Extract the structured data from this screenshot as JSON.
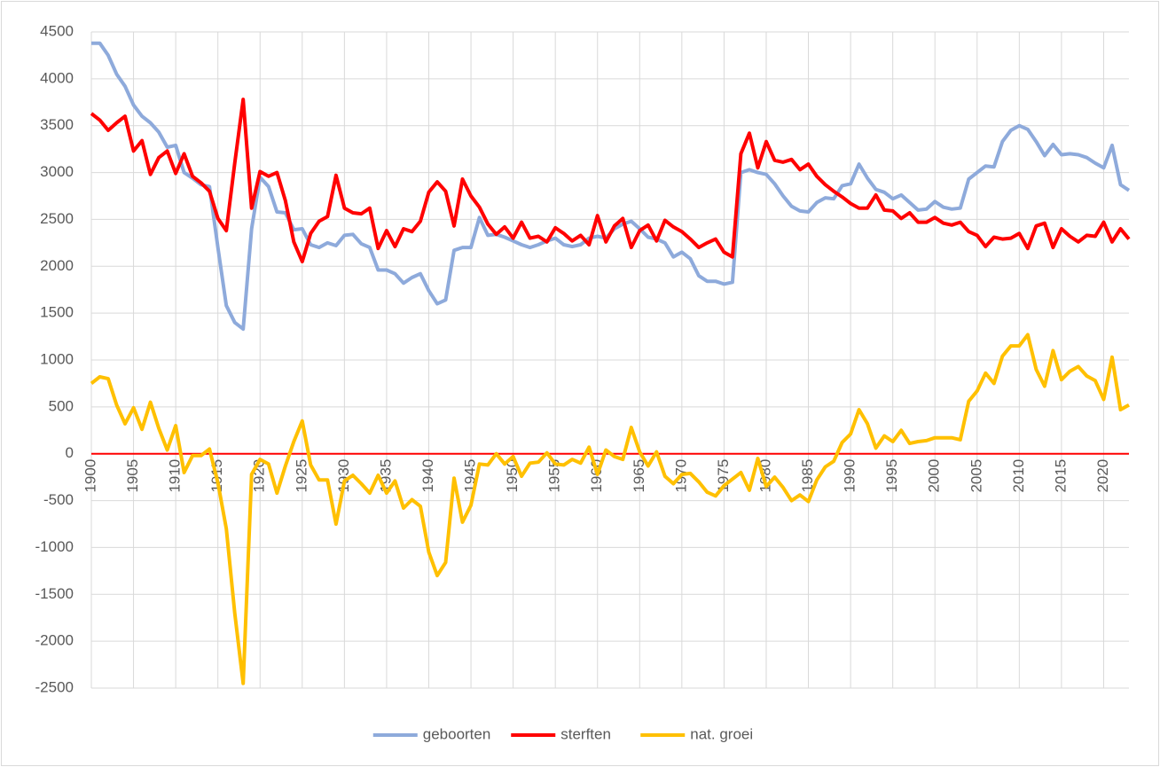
{
  "chart_data": {
    "type": "line",
    "x": [
      1900,
      1901,
      1902,
      1903,
      1904,
      1905,
      1906,
      1907,
      1908,
      1909,
      1910,
      1911,
      1912,
      1913,
      1914,
      1915,
      1916,
      1917,
      1918,
      1919,
      1920,
      1921,
      1922,
      1923,
      1924,
      1925,
      1926,
      1927,
      1928,
      1929,
      1930,
      1931,
      1932,
      1933,
      1934,
      1935,
      1936,
      1937,
      1938,
      1939,
      1940,
      1941,
      1942,
      1943,
      1944,
      1945,
      1946,
      1947,
      1948,
      1949,
      1950,
      1951,
      1952,
      1953,
      1954,
      1955,
      1956,
      1957,
      1958,
      1959,
      1960,
      1961,
      1962,
      1963,
      1964,
      1965,
      1966,
      1967,
      1968,
      1969,
      1970,
      1971,
      1972,
      1973,
      1974,
      1975,
      1976,
      1977,
      1978,
      1979,
      1980,
      1981,
      1982,
      1983,
      1984,
      1985,
      1986,
      1987,
      1988,
      1989,
      1990,
      1991,
      1992,
      1993,
      1994,
      1995,
      1996,
      1997,
      1998,
      1999,
      2000,
      2001,
      2002,
      2003,
      2004,
      2005,
      2006,
      2007,
      2008,
      2009,
      2010,
      2011,
      2012,
      2013,
      2014,
      2015,
      2016,
      2017,
      2018,
      2019,
      2020,
      2021,
      2022,
      2023
    ],
    "series": [
      {
        "name": "geboorten",
        "color": "#8eaadb",
        "values": [
          4380,
          4380,
          4250,
          4050,
          3920,
          3720,
          3600,
          3530,
          3430,
          3270,
          3290,
          3000,
          2940,
          2870,
          2850,
          2200,
          1580,
          1400,
          1330,
          2400,
          2950,
          2850,
          2580,
          2570,
          2390,
          2400,
          2230,
          2200,
          2250,
          2220,
          2330,
          2340,
          2240,
          2200,
          1960,
          1960,
          1920,
          1820,
          1880,
          1920,
          1740,
          1600,
          1640,
          2170,
          2200,
          2200,
          2520,
          2330,
          2340,
          2310,
          2270,
          2230,
          2200,
          2230,
          2270,
          2300,
          2230,
          2210,
          2230,
          2300,
          2320,
          2300,
          2400,
          2450,
          2480,
          2400,
          2310,
          2290,
          2250,
          2100,
          2150,
          2080,
          1900,
          1840,
          1840,
          1810,
          1830,
          3000,
          3030,
          3000,
          2980,
          2880,
          2750,
          2640,
          2590,
          2580,
          2680,
          2730,
          2720,
          2860,
          2880,
          3090,
          2940,
          2820,
          2790,
          2720,
          2760,
          2680,
          2600,
          2610,
          2690,
          2630,
          2610,
          2620,
          2930,
          3000,
          3070,
          3060,
          3330,
          3450,
          3500,
          3460,
          3330,
          3180,
          3300,
          3190,
          3200,
          3190,
          3160,
          3100,
          3050,
          3290,
          2870,
          2810
        ]
      },
      {
        "name": "sterften",
        "color": "#ff0000",
        "values": [
          3630,
          3560,
          3450,
          3530,
          3600,
          3230,
          3340,
          2980,
          3160,
          3230,
          2990,
          3200,
          2960,
          2890,
          2800,
          2510,
          2380,
          3100,
          3780,
          2620,
          3010,
          2960,
          3000,
          2700,
          2260,
          2050,
          2350,
          2480,
          2530,
          2970,
          2620,
          2570,
          2560,
          2620,
          2190,
          2380,
          2210,
          2400,
          2370,
          2480,
          2790,
          2900,
          2800,
          2430,
          2930,
          2750,
          2630,
          2450,
          2340,
          2420,
          2300,
          2470,
          2300,
          2320,
          2260,
          2410,
          2350,
          2270,
          2330,
          2230,
          2540,
          2260,
          2430,
          2510,
          2200,
          2380,
          2440,
          2270,
          2490,
          2420,
          2370,
          2290,
          2200,
          2250,
          2290,
          2150,
          2100,
          3200,
          3420,
          3050,
          3330,
          3130,
          3110,
          3140,
          3030,
          3090,
          2960,
          2870,
          2800,
          2740,
          2670,
          2620,
          2620,
          2760,
          2600,
          2590,
          2510,
          2570,
          2470,
          2470,
          2520,
          2460,
          2440,
          2470,
          2370,
          2330,
          2210,
          2310,
          2290,
          2300,
          2350,
          2190,
          2430,
          2460,
          2200,
          2400,
          2320,
          2260,
          2330,
          2320,
          2470,
          2260,
          2400,
          2290
        ]
      },
      {
        "name": "nat. groei",
        "color": "#ffc000",
        "values": [
          750,
          820,
          800,
          520,
          320,
          490,
          260,
          550,
          270,
          40,
          300,
          -200,
          -20,
          -20,
          50,
          -310,
          -800,
          -1700,
          -2450,
          -220,
          -60,
          -110,
          -420,
          -130,
          130,
          350,
          -120,
          -280,
          -280,
          -750,
          -290,
          -230,
          -320,
          -420,
          -230,
          -420,
          -290,
          -580,
          -490,
          -560,
          -1050,
          -1300,
          -1160,
          -260,
          -730,
          -550,
          -110,
          -120,
          0,
          -110,
          -30,
          -240,
          -100,
          -90,
          10,
          -110,
          -120,
          -60,
          -100,
          70,
          -220,
          40,
          -30,
          -60,
          280,
          20,
          -130,
          20,
          -240,
          -320,
          -220,
          -210,
          -300,
          -410,
          -450,
          -340,
          -270,
          -200,
          -390,
          -50,
          -350,
          -250,
          -360,
          -500,
          -440,
          -510,
          -280,
          -140,
          -80,
          120,
          210,
          470,
          320,
          60,
          190,
          130,
          250,
          110,
          130,
          140,
          170,
          170,
          170,
          150,
          560,
          670,
          860,
          750,
          1040,
          1150,
          1150,
          1270,
          900,
          720,
          1100,
          790,
          880,
          930,
          830,
          780,
          580,
          1030,
          470,
          520
        ]
      }
    ],
    "xlim": [
      1900,
      2023
    ],
    "xticks": [
      1900,
      1905,
      1910,
      1915,
      1920,
      1925,
      1930,
      1935,
      1940,
      1945,
      1950,
      1955,
      1960,
      1965,
      1970,
      1975,
      1980,
      1985,
      1990,
      1995,
      2000,
      2005,
      2010,
      2015,
      2020
    ],
    "ylim": [
      -2500,
      4500
    ],
    "yticks": [
      -2500,
      -2000,
      -1500,
      -1000,
      -500,
      0,
      500,
      1000,
      1500,
      2000,
      2500,
      3000,
      3500,
      4000,
      4500
    ],
    "grid": true,
    "zero_line_color": "#ff0000",
    "legend": "bottom"
  }
}
